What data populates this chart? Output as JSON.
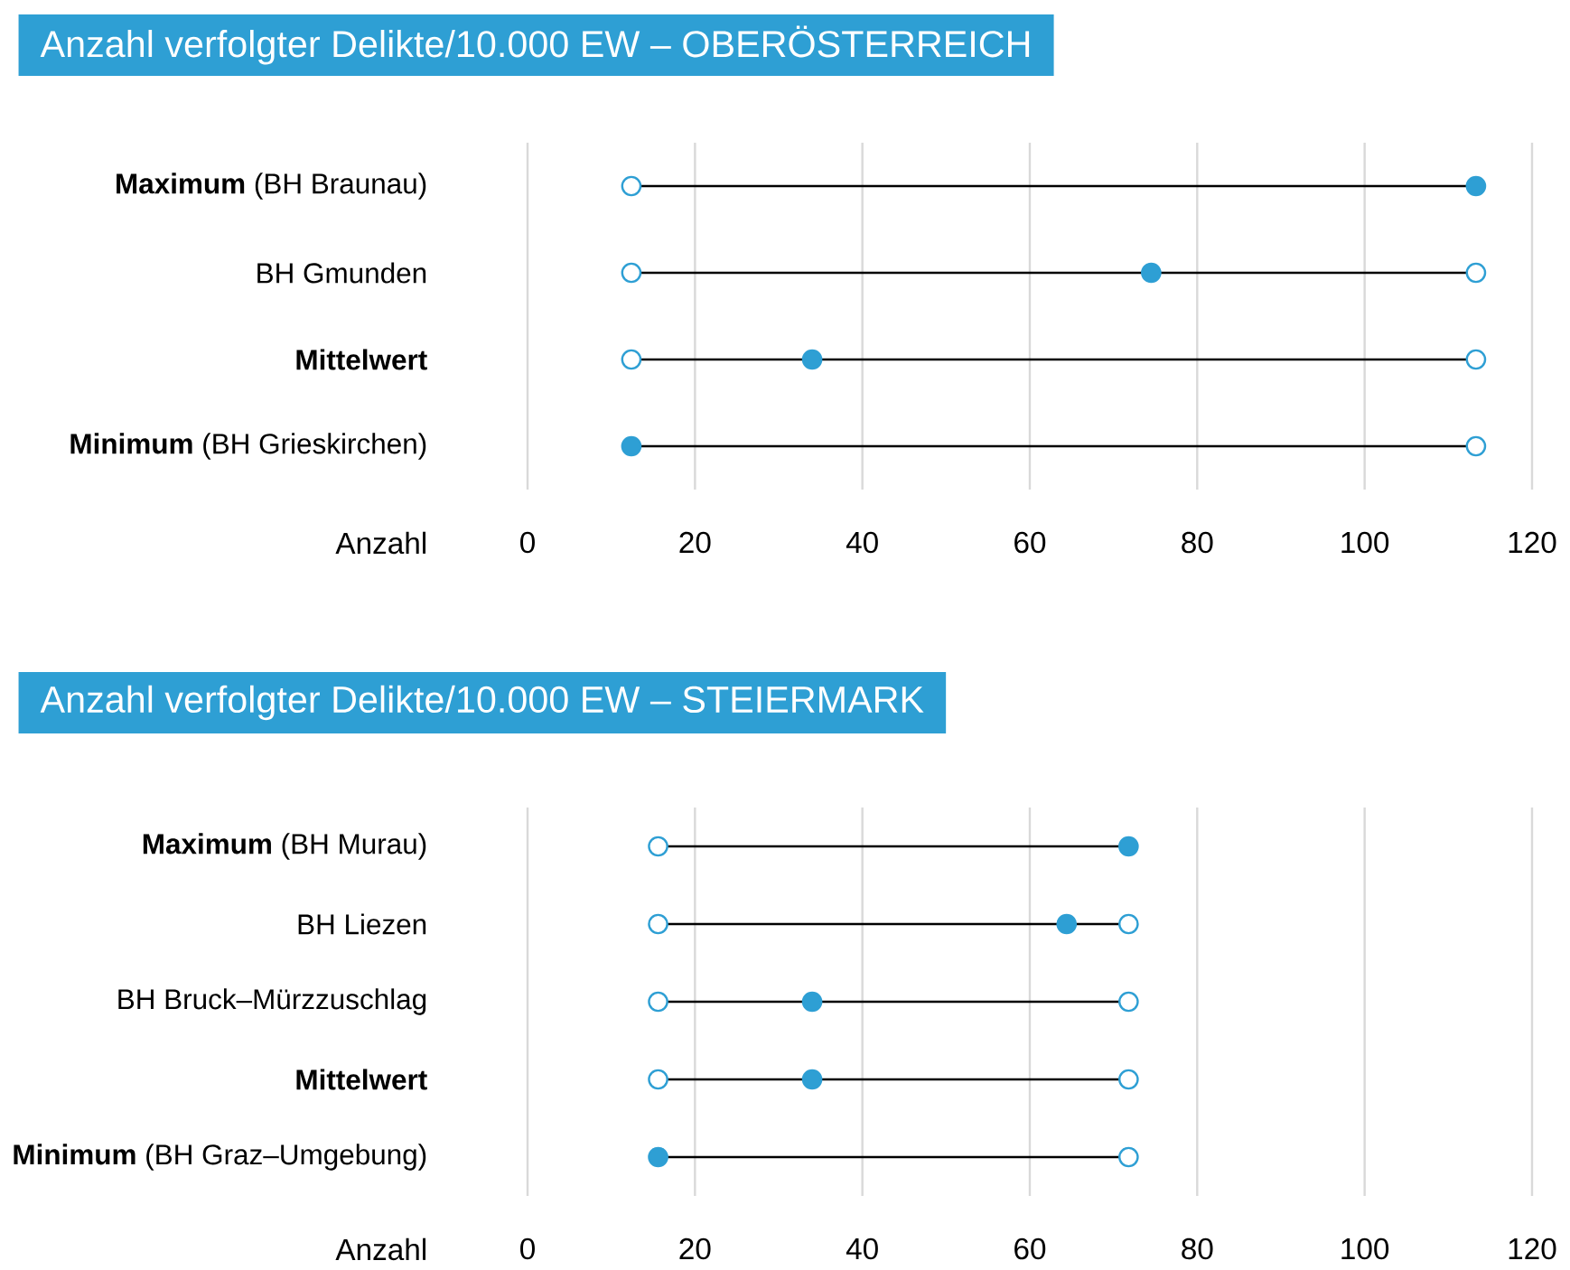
{
  "chart_data": [
    {
      "type": "scatter",
      "orientation": "horizontal",
      "title": "Anzahl verfolgter Delikte/10.000 EW – OBERÖSTERREICH",
      "xlabel": "Anzahl",
      "categories": [
        "**Maximum** (BH Braunau)",
        "BH Gmunden",
        "**Mittelwert**",
        "**Minimum** (BH Grieskirchen)"
      ],
      "series": [
        {
          "color": "#ffffff",
          "values": [
            12.4,
            12.4,
            12.4,
            null
          ]
        },
        {
          "color": "#ffffff",
          "values": [
            null,
            113.3,
            113.3,
            113.3
          ]
        },
        {
          "color": "#2e9fd4",
          "values": [
            113.3,
            74.5,
            34.0,
            12.4
          ]
        }
      ],
      "marker": "circle",
      "xlim": [
        0,
        120
      ],
      "xticks": [
        0,
        20,
        40,
        60,
        80,
        100,
        120
      ],
      "grid": "x"
    },
    {
      "type": "scatter",
      "orientation": "horizontal",
      "title": "Anzahl verfolgter Delikte/10.000 EW – STEIERMARK",
      "xlabel": "Anzahl",
      "categories": [
        "**Maximum** (BH Murau)",
        "BH Liezen",
        "BH Bruck–Mürzzuschlag",
        "**Mittelwert**",
        "**Minimum** (BH Graz–Umgebung)"
      ],
      "series": [
        {
          "color": "#ffffff",
          "values": [
            15.6,
            15.6,
            15.6,
            15.6,
            null
          ]
        },
        {
          "color": "#ffffff",
          "values": [
            null,
            71.8,
            71.8,
            71.8,
            71.8
          ]
        },
        {
          "color": "#2e9fd4",
          "values": [
            71.8,
            64.4,
            34.0,
            34.0,
            15.6
          ]
        }
      ],
      "marker": "circle",
      "xlim": [
        0,
        120
      ],
      "xticks": [
        0,
        20,
        40,
        60,
        80,
        100,
        120
      ],
      "grid": "x"
    }
  ]
}
